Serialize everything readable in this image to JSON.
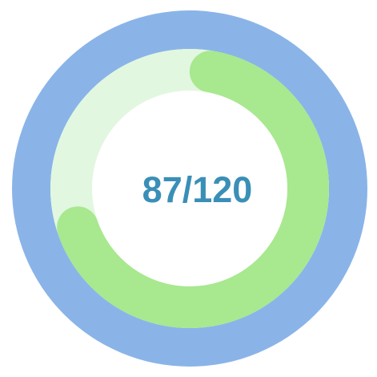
{
  "progress": {
    "current": 87,
    "total": 120,
    "label": "87/120"
  },
  "colors": {
    "outer_ring": "#8ab4e8",
    "track": "#e2f7df",
    "progress": "#a8e88f",
    "inner_fill": "#ffffff",
    "text": "#3a8fb7",
    "background": "#ffffff"
  }
}
